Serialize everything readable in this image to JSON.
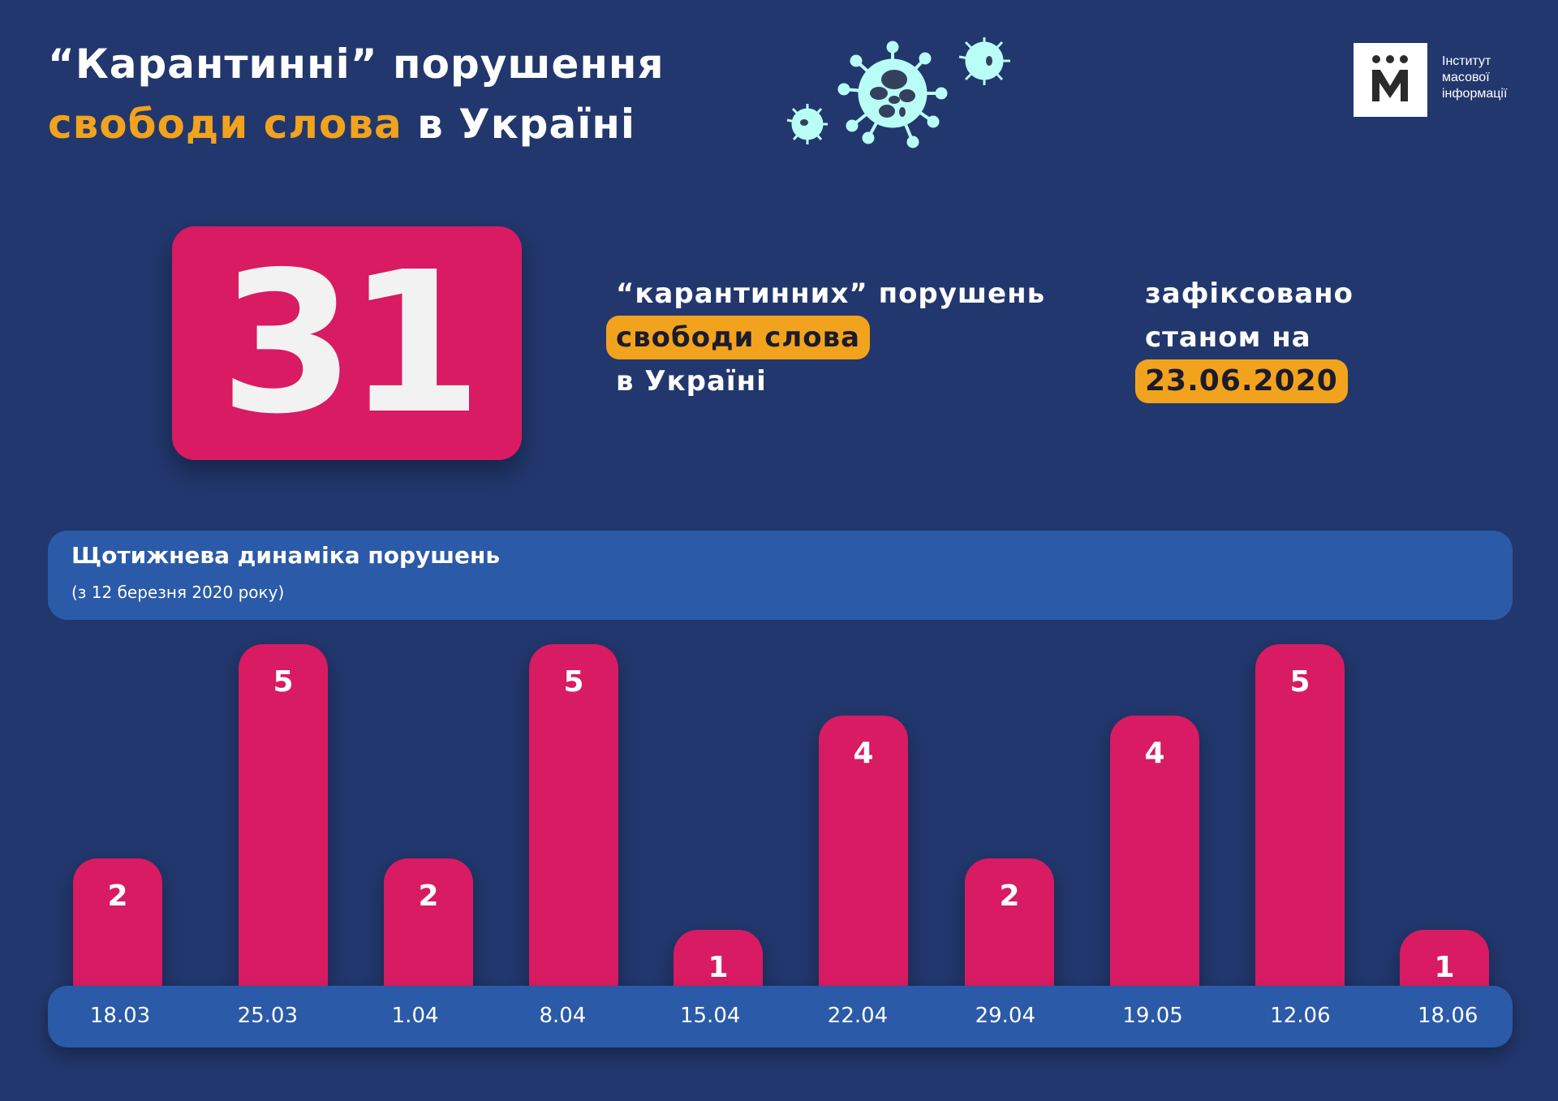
{
  "header": {
    "title_line1": "“Карантинні” порушення",
    "title_highlight": "свободи слова",
    "title_rest": " в Україні"
  },
  "logo": {
    "mark": "М",
    "text": [
      "Інститут",
      "масової",
      "інформації"
    ]
  },
  "stat": {
    "number": "31",
    "line1": "“карантинних” порушень",
    "line2": "свободи слова",
    "line3": "в Україні",
    "date_line1": "зафіксовано",
    "date_line2": "станом на",
    "date": "23.06.2020"
  },
  "colors": {
    "background": "#22376d",
    "accent": "#d81b62",
    "highlight": "#f2a31d",
    "band": "#2a5aa8"
  },
  "chart_data": {
    "type": "bar",
    "title": "Щотижнева динаміка порушень",
    "subtitle": "(з 12 березня 2020 року)",
    "categories": [
      "18.03",
      "25.03",
      "1.04",
      "8.04",
      "15.04",
      "22.04",
      "29.04",
      "19.05",
      "12.06",
      "18.06"
    ],
    "values": [
      2,
      5,
      2,
      5,
      1,
      4,
      2,
      4,
      5,
      1
    ],
    "ylim": [
      0,
      5
    ],
    "grid": false
  }
}
